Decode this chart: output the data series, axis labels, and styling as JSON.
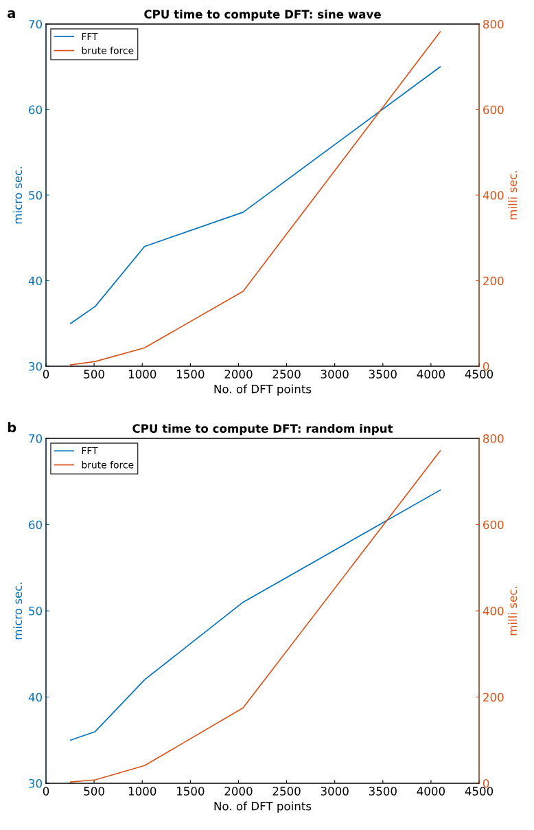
{
  "chart_data": [
    {
      "type": "line",
      "title": "CPU time to compute DFT: sine wave",
      "annotations": [
        "a"
      ],
      "xlabel": "No. of DFT points",
      "ylabel": "micro sec.",
      "y2label": "milli sec.",
      "x": [
        256,
        512,
        1024,
        2048,
        4096
      ],
      "series": [
        {
          "name": "FFT",
          "color": "#0072bd",
          "values": [
            35,
            37,
            44,
            48,
            65
          ]
        },
        {
          "name": "brute force",
          "color": "#d95319",
          "axis": "y2",
          "values": [
            3,
            11,
            43,
            175,
            782
          ]
        }
      ],
      "xlim": [
        0,
        4500
      ],
      "xticks": [
        0,
        500,
        1000,
        1500,
        2000,
        2500,
        3000,
        3500,
        4000,
        4500
      ],
      "ylim": [
        30,
        70
      ],
      "yticks": [
        30,
        40,
        50,
        60,
        70
      ],
      "y2lim": [
        0,
        800
      ],
      "y2ticks": [
        0,
        200,
        400,
        600,
        800
      ],
      "legend": "top left",
      "grid": false
    },
    {
      "type": "line",
      "title": "CPU time to compute DFT: random input",
      "annotations": [
        "b"
      ],
      "xlabel": "No. of DFT points",
      "ylabel": "micro sec.",
      "y2label": "milli sec.",
      "x": [
        256,
        512,
        1024,
        2048,
        4096
      ],
      "series": [
        {
          "name": "FFT",
          "color": "#0072bd",
          "values": [
            35,
            36,
            42,
            51,
            64
          ]
        },
        {
          "name": "brute force",
          "color": "#d95319",
          "axis": "y2",
          "values": [
            3,
            8,
            41,
            175,
            771
          ]
        }
      ],
      "xlim": [
        0,
        4500
      ],
      "xticks": [
        0,
        500,
        1000,
        1500,
        2000,
        2500,
        3000,
        3500,
        4000,
        4500
      ],
      "ylim": [
        30,
        70
      ],
      "yticks": [
        30,
        40,
        50,
        60,
        70
      ],
      "y2lim": [
        0,
        800
      ],
      "y2ticks": [
        0,
        200,
        400,
        600,
        800
      ],
      "legend": "top left",
      "grid": false
    }
  ]
}
